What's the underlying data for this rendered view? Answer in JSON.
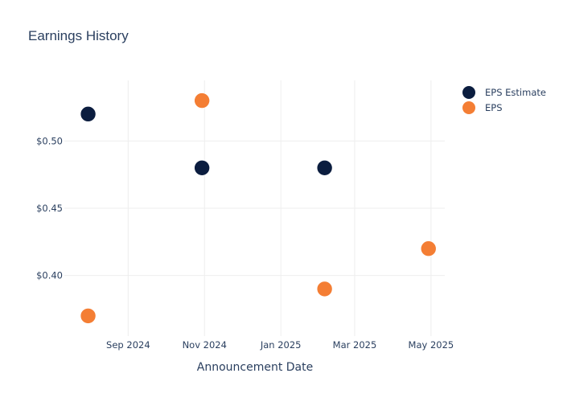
{
  "chart_data": {
    "type": "scatter",
    "title": "Earnings History",
    "xlabel": "Announcement Date",
    "ylabel": "",
    "x_tick_labels": [
      "Sep 2024",
      "Nov 2024",
      "Jan 2025",
      "Mar 2025",
      "May 2025"
    ],
    "x_tick_dates": [
      "2024-09-01",
      "2024-11-01",
      "2025-01-01",
      "2025-03-01",
      "2025-05-01"
    ],
    "xlim": [
      "2024-07-12",
      "2025-05-12"
    ],
    "y_tick_labels": [
      "$0.40",
      "$0.45",
      "$0.50"
    ],
    "y_tick_values": [
      0.4,
      0.45,
      0.5
    ],
    "ylim": [
      0.355,
      0.545
    ],
    "grid": true,
    "legend_position": "top-right",
    "series": [
      {
        "name": "EPS Estimate",
        "color": "#0b1d3f",
        "x": [
          "2024-07-31",
          "2024-10-30",
          "2025-02-05",
          "2025-04-29"
        ],
        "y": [
          0.52,
          0.48,
          0.48,
          0.42
        ]
      },
      {
        "name": "EPS",
        "color": "#f47e34",
        "x": [
          "2024-07-31",
          "2024-10-30",
          "2025-02-05",
          "2025-04-29"
        ],
        "y": [
          0.37,
          0.53,
          0.39,
          0.42
        ]
      }
    ]
  }
}
